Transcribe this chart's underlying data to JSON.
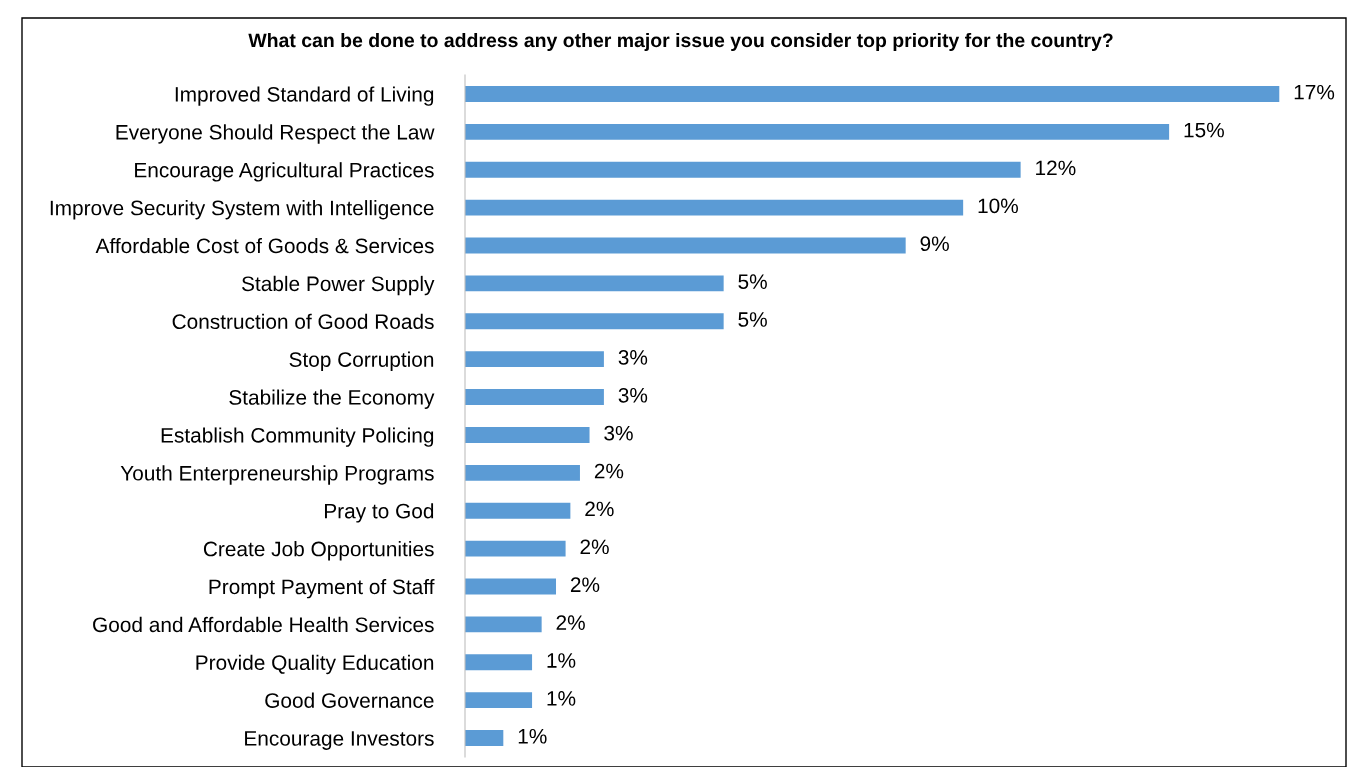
{
  "chart_data": {
    "type": "bar",
    "orientation": "horizontal",
    "title": "What can be done to address any other major issue you consider top priority for the country?",
    "categories": [
      "Improved Standard of Living",
      "Everyone Should Respect the Law",
      "Encourage Agricultural Practices",
      "Improve Security System with Intelligence",
      "Affordable Cost of Goods & Services",
      "Stable Power Supply",
      "Construction of Good Roads",
      "Stop Corruption",
      "Stabilize the Economy",
      "Establish Community Policing",
      "Youth Enterpreneurship Programs",
      "Pray to God",
      "Create Job Opportunities",
      "Prompt Payment of Staff",
      "Good and Affordable Health Services",
      "Provide Quality Education",
      "Good Governance",
      "Encourage Investors"
    ],
    "values": [
      17.0,
      14.7,
      11.6,
      10.4,
      9.2,
      5.4,
      5.4,
      2.9,
      2.9,
      2.6,
      2.4,
      2.2,
      2.1,
      1.9,
      1.6,
      1.4,
      1.4,
      0.8
    ],
    "value_labels": [
      "17%",
      "15%",
      "12%",
      "10%",
      "9%",
      "5%",
      "5%",
      "3%",
      "3%",
      "3%",
      "2%",
      "2%",
      "2%",
      "2%",
      "2%",
      "1%",
      "1%",
      "1%"
    ],
    "color": "#5b9bd5",
    "grid": false,
    "legend": false
  }
}
